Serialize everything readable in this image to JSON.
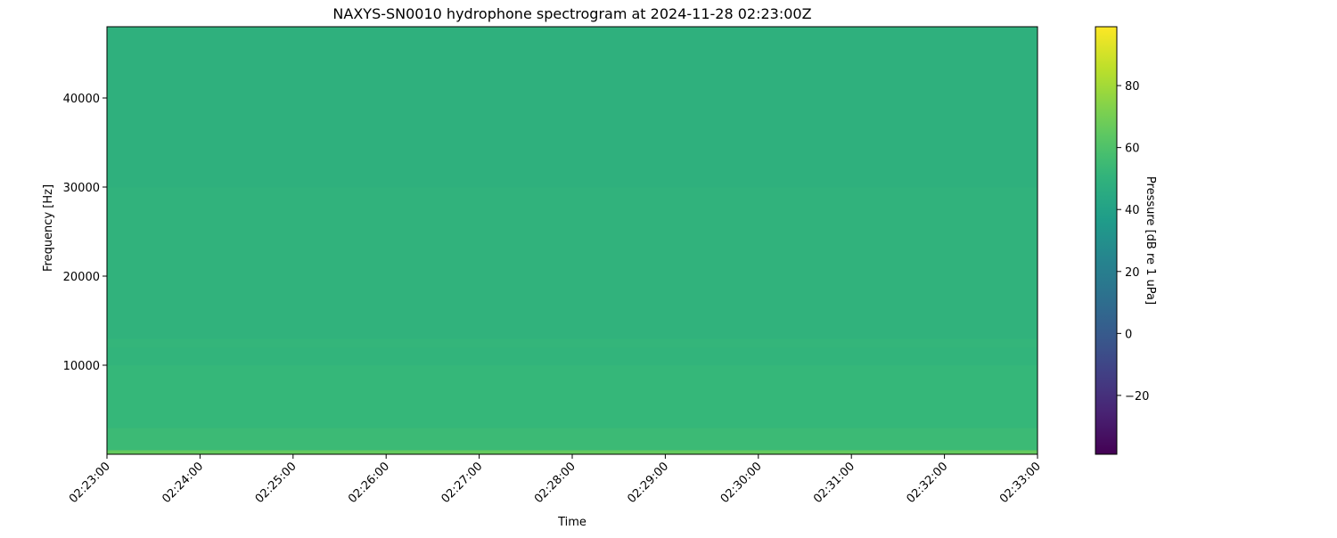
{
  "chart_data": {
    "type": "heatmap",
    "title": "NAXYS-SN0010 hydrophone spectrogram at 2024-11-28 02:23:00Z",
    "xlabel": "Time",
    "ylabel": "Frequency [Hz]",
    "xlim": [
      "02:23:00",
      "02:33:00"
    ],
    "ylim": [
      0,
      48000
    ],
    "x_ticks": [
      "02:23:00",
      "02:24:00",
      "02:25:00",
      "02:26:00",
      "02:27:00",
      "02:28:00",
      "02:29:00",
      "02:30:00",
      "02:31:00",
      "02:32:00",
      "02:33:00"
    ],
    "y_ticks": [
      10000,
      20000,
      30000,
      40000
    ],
    "grid": false,
    "colormap": "viridis",
    "colorbar": {
      "label": "Pressure [dB re 1 uPa]",
      "range": [
        -39,
        99
      ],
      "ticks": [
        -20,
        0,
        20,
        40,
        60,
        80
      ],
      "tick_labels": [
        "−20",
        "0",
        "20",
        "40",
        "60",
        "80"
      ]
    },
    "bands": [
      {
        "f_low": 0,
        "f_high": 500,
        "db": 66
      },
      {
        "f_low": 500,
        "f_high": 3000,
        "db": 55
      },
      {
        "f_low": 3000,
        "f_high": 10000,
        "db": 53
      },
      {
        "f_low": 10000,
        "f_high": 12000,
        "db": 51
      },
      {
        "f_low": 12000,
        "f_high": 13000,
        "db": 52
      },
      {
        "f_low": 13000,
        "f_high": 30000,
        "db": 50
      },
      {
        "f_low": 30000,
        "f_high": 48000,
        "db": 49
      }
    ]
  }
}
